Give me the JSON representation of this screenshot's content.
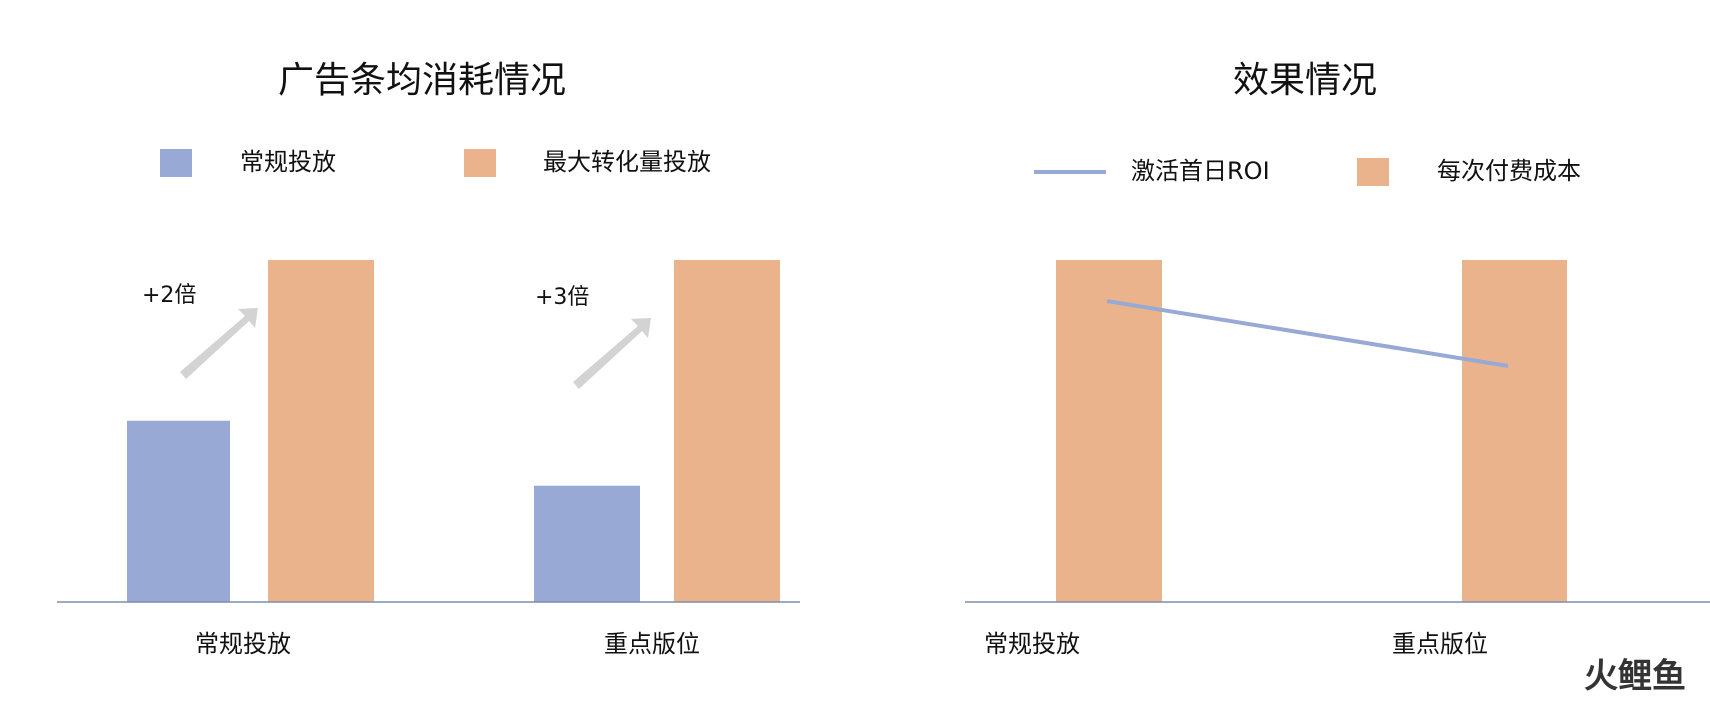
{
  "charts": [
    {
      "chart_data": {
        "type": "bar",
        "title": "广告条均消耗情况",
        "categories": [
          "常规投放",
          "重点版位"
        ],
        "series": [
          {
            "name": "常规投放",
            "color": "#98a9d6",
            "values": [
              53,
              34
            ]
          },
          {
            "name": "最大转化量投放",
            "color": "#ebb38c",
            "values": [
              100,
              100
            ]
          }
        ],
        "annotations": [
          "+2倍",
          "+3倍"
        ],
        "ylim": [
          0,
          100
        ]
      }
    },
    {
      "chart_data": {
        "type": "combo",
        "title": "效果情况",
        "categories": [
          "常规投放",
          "重点版位"
        ],
        "series": [
          {
            "name": "激活首日ROI",
            "type": "line",
            "color": "#98a9d6",
            "values": [
              88,
              69
            ]
          },
          {
            "name": "每次付费成本",
            "type": "bar",
            "color": "#ebb38c",
            "values": [
              100,
              100
            ]
          }
        ],
        "ylim": [
          0,
          100
        ]
      }
    }
  ],
  "watermark": "火鲤鱼"
}
